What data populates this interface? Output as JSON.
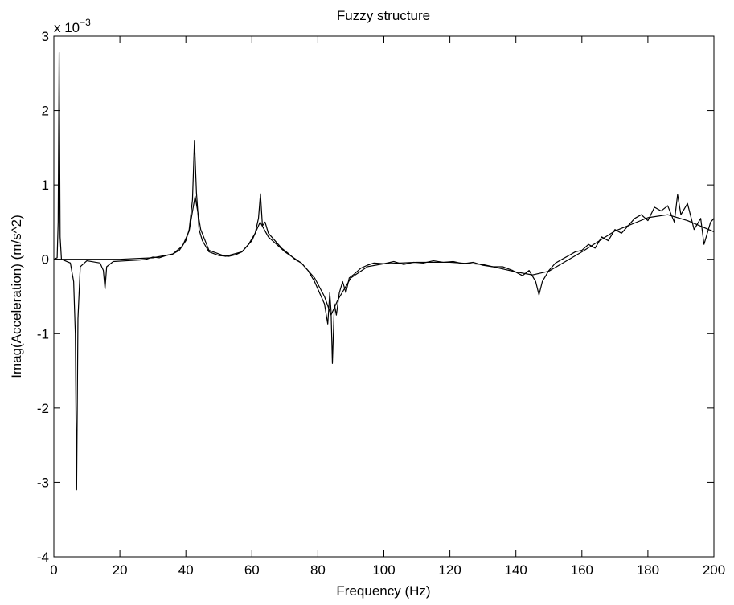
{
  "chart_data": {
    "type": "line",
    "title": "Fuzzy structure",
    "x_label": "Frequency (Hz)",
    "y_label": "Imag(Acceleration) (m/s^2)",
    "y_multiplier": {
      "base": "x 10",
      "exponent": "−3"
    },
    "xlim": [
      0,
      200
    ],
    "xticks": [
      0,
      20,
      40,
      60,
      80,
      100,
      120,
      140,
      160,
      180,
      200
    ],
    "ylim": [
      -4,
      3
    ],
    "yticks": [
      -4,
      -3,
      -2,
      -1,
      0,
      1,
      2,
      3
    ],
    "grid": false,
    "series": [
      {
        "color": "#000000",
        "x": [
          0,
          1,
          1.3,
          1.6,
          1.9,
          2.3,
          5,
          6,
          6.5,
          6.9,
          7.3,
          8,
          10,
          14,
          15,
          15.5,
          16,
          18,
          22,
          26,
          28,
          30,
          32,
          34,
          36,
          38,
          40,
          41,
          42,
          42.6,
          43.2,
          44,
          45,
          47,
          50,
          53,
          55,
          57,
          59,
          61,
          62,
          62.6,
          63.2,
          64,
          65,
          67,
          69,
          71,
          73,
          75,
          77,
          79,
          80,
          81,
          82,
          83,
          83.6,
          84,
          84.4,
          85,
          85.6,
          86.5,
          87.5,
          88.5,
          89.5,
          91,
          93,
          95,
          97,
          100,
          103,
          106,
          109,
          112,
          115,
          118,
          121,
          124,
          127,
          130,
          133,
          136,
          139,
          142,
          144,
          146,
          147,
          148,
          150,
          152,
          154,
          156,
          158,
          160,
          162,
          164,
          166,
          168,
          170,
          172,
          174,
          176,
          178,
          180,
          182,
          184,
          186,
          188,
          189,
          190,
          192,
          194,
          196,
          197,
          199,
          200
        ],
        "values": [
          0,
          0.02,
          0.5,
          2.78,
          0.3,
          0,
          -0.05,
          -0.3,
          -1.0,
          -3.1,
          -0.8,
          -0.1,
          -0.02,
          -0.05,
          -0.15,
          -0.4,
          -0.1,
          -0.03,
          -0.02,
          -0.01,
          0,
          0.03,
          0.02,
          0.05,
          0.07,
          0.12,
          0.25,
          0.4,
          0.8,
          1.6,
          0.9,
          0.4,
          0.25,
          0.1,
          0.05,
          0.04,
          0.06,
          0.1,
          0.2,
          0.35,
          0.55,
          0.88,
          0.45,
          0.5,
          0.35,
          0.25,
          0.15,
          0.08,
          0,
          -0.05,
          -0.15,
          -0.3,
          -0.4,
          -0.5,
          -0.6,
          -0.87,
          -0.45,
          -0.7,
          -1.4,
          -0.6,
          -0.75,
          -0.45,
          -0.3,
          -0.45,
          -0.25,
          -0.2,
          -0.12,
          -0.08,
          -0.05,
          -0.06,
          -0.03,
          -0.07,
          -0.04,
          -0.05,
          -0.02,
          -0.04,
          -0.03,
          -0.06,
          -0.04,
          -0.08,
          -0.1,
          -0.1,
          -0.15,
          -0.22,
          -0.15,
          -0.3,
          -0.48,
          -0.3,
          -0.15,
          -0.05,
          0,
          0.05,
          0.1,
          0.12,
          0.2,
          0.15,
          0.3,
          0.25,
          0.4,
          0.35,
          0.45,
          0.55,
          0.6,
          0.52,
          0.7,
          0.65,
          0.72,
          0.5,
          0.87,
          0.6,
          0.75,
          0.4,
          0.55,
          0.2,
          0.5,
          0.55
        ]
      },
      {
        "color": "#000000",
        "x": [
          0,
          20,
          30,
          36,
          39,
          41,
          42.8,
          44.5,
          47,
          52,
          57,
          60,
          62.5,
          65,
          70,
          75,
          79,
          82,
          84,
          86,
          90,
          95,
          100,
          110,
          120,
          130,
          140,
          145,
          150,
          160,
          170,
          180,
          186,
          192,
          200
        ],
        "values": [
          0,
          0,
          0.02,
          0.07,
          0.18,
          0.38,
          0.85,
          0.4,
          0.12,
          0.04,
          0.1,
          0.25,
          0.5,
          0.3,
          0.1,
          -0.05,
          -0.25,
          -0.5,
          -0.75,
          -0.55,
          -0.25,
          -0.1,
          -0.06,
          -0.04,
          -0.04,
          -0.07,
          -0.17,
          -0.21,
          -0.16,
          0.1,
          0.38,
          0.56,
          0.6,
          0.52,
          0.37
        ]
      }
    ]
  }
}
